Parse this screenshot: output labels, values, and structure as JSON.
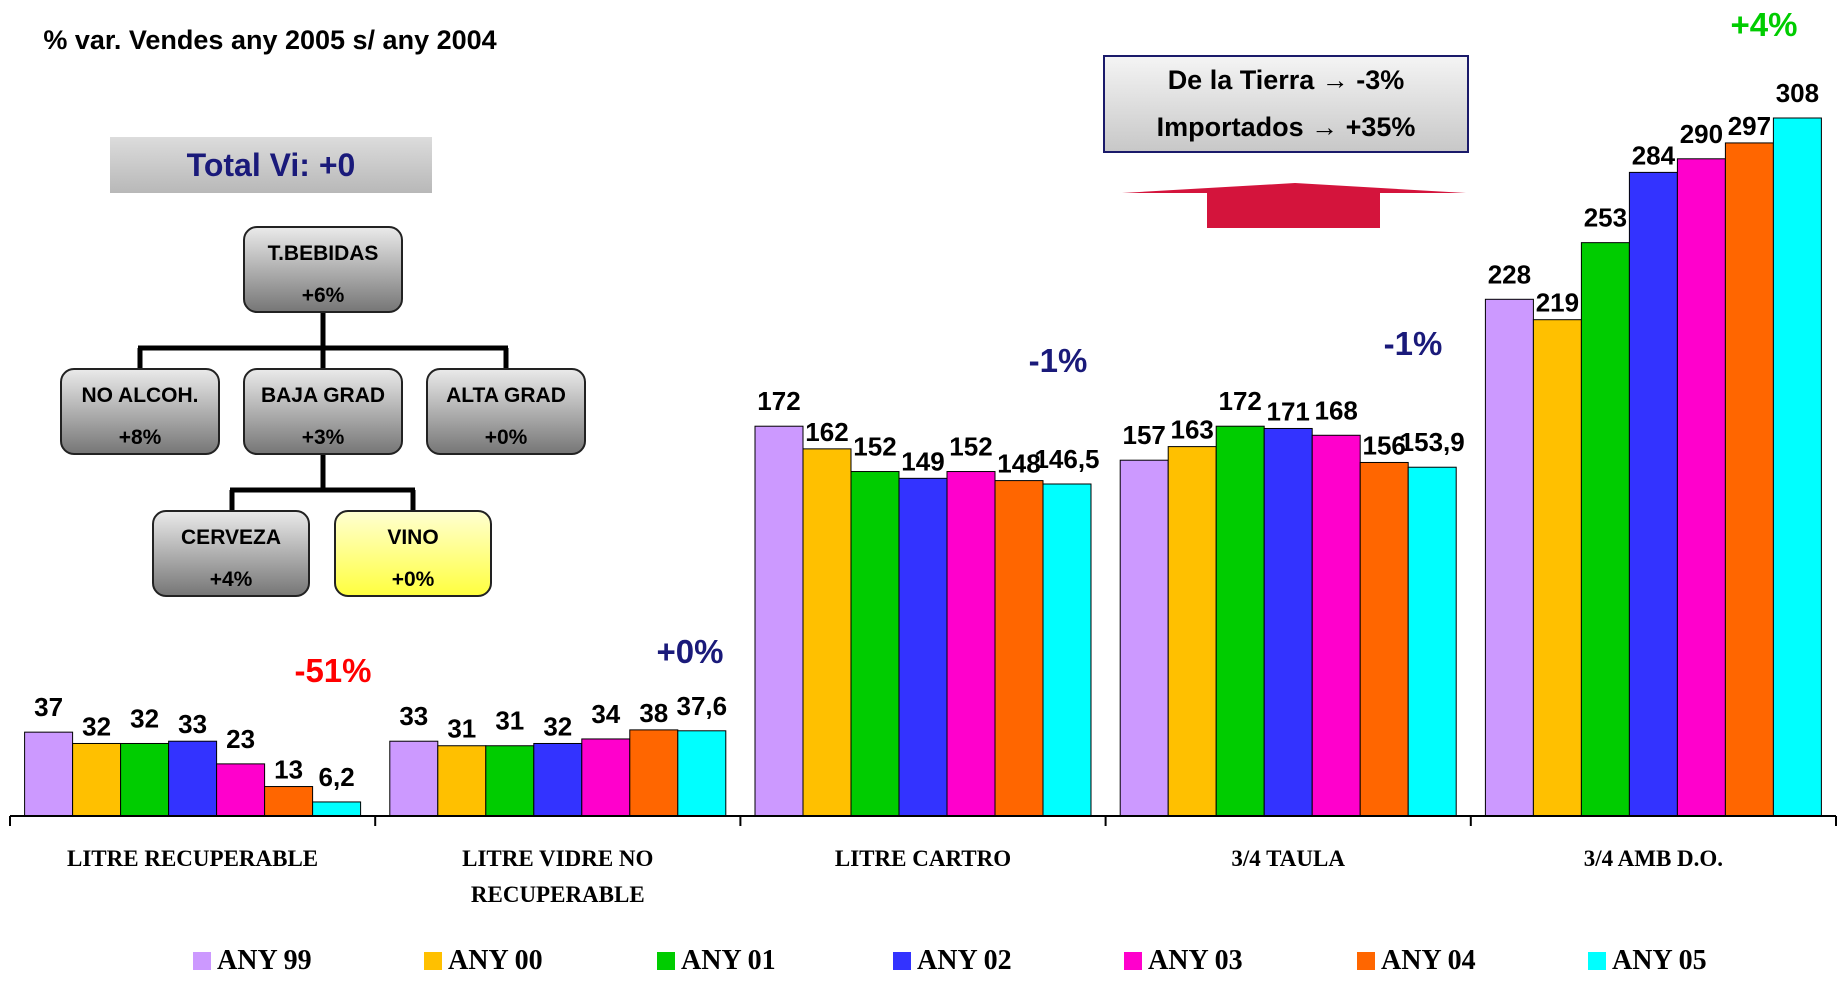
{
  "title": "% var. Vendes any 2005 s/ any 2004",
  "total_box": "Total Vi: +0",
  "tree": {
    "root": {
      "label": "T.BEBIDAS",
      "value": "+6%"
    },
    "level1": [
      {
        "label": "NO ALCOH.",
        "value": "+8%"
      },
      {
        "label": "BAJA GRAD",
        "value": "+3%"
      },
      {
        "label": "ALTA GRAD",
        "value": "+0%"
      }
    ],
    "level2": [
      {
        "label": "CERVEZA",
        "value": "+4%"
      },
      {
        "label": "VINO",
        "value": "+0%",
        "highlight": "#ffff40"
      }
    ]
  },
  "info_box": {
    "line1": "De la Tierra → -3%",
    "line2": "Importados → +35%",
    "arrow_color": "#d4143c"
  },
  "chart_data": {
    "type": "bar",
    "categories": [
      "LITRE RECUPERABLE",
      "LITRE VIDRE NO RECUPERABLE",
      "LITRE CARTRO",
      "3/4 TAULA",
      "3/4 AMB D.O."
    ],
    "series": [
      {
        "name": "ANY 99",
        "color": "#cc99ff",
        "values": [
          37,
          33,
          172,
          157,
          228
        ]
      },
      {
        "name": "ANY 00",
        "color": "#ffc000",
        "values": [
          32,
          31,
          162,
          163,
          219
        ]
      },
      {
        "name": "ANY 01",
        "color": "#00cc00",
        "values": [
          32,
          31,
          152,
          172,
          253
        ]
      },
      {
        "name": "ANY 02",
        "color": "#3333ff",
        "values": [
          33,
          32,
          149,
          171,
          284
        ]
      },
      {
        "name": "ANY 03",
        "color": "#ff00cc",
        "values": [
          23,
          34,
          152,
          168,
          290
        ]
      },
      {
        "name": "ANY 04",
        "color": "#ff6600",
        "values": [
          13,
          38,
          148,
          156,
          297
        ]
      },
      {
        "name": "ANY 05",
        "color": "#00ffff",
        "values": [
          6.2,
          37.6,
          146.5,
          153.9,
          308
        ]
      }
    ],
    "data_labels": [
      [
        "37",
        "32",
        "32",
        "33",
        "23",
        "13",
        "6,2"
      ],
      [
        "33",
        "31",
        "31",
        "32",
        "34",
        "38",
        "37,6"
      ],
      [
        "172",
        "162",
        "152",
        "149",
        "152",
        "148",
        "146,5"
      ],
      [
        "157",
        "163",
        "172",
        "171",
        "168",
        "156",
        "153,9"
      ],
      [
        "228",
        "219",
        "253",
        "284",
        "290",
        "297",
        "308"
      ]
    ],
    "annotations": [
      {
        "text": "-51%",
        "color": "#ff0000"
      },
      {
        "text": "+0%",
        "color": "#1a1a7a"
      },
      {
        "text": "-1%",
        "color": "#1a1a7a"
      },
      {
        "text": "-1%",
        "color": "#1a1a7a"
      },
      {
        "text": "+4%",
        "color": "#00cc00"
      }
    ],
    "ylim": [
      0,
      308
    ],
    "grid": false,
    "legend": "bottom"
  }
}
